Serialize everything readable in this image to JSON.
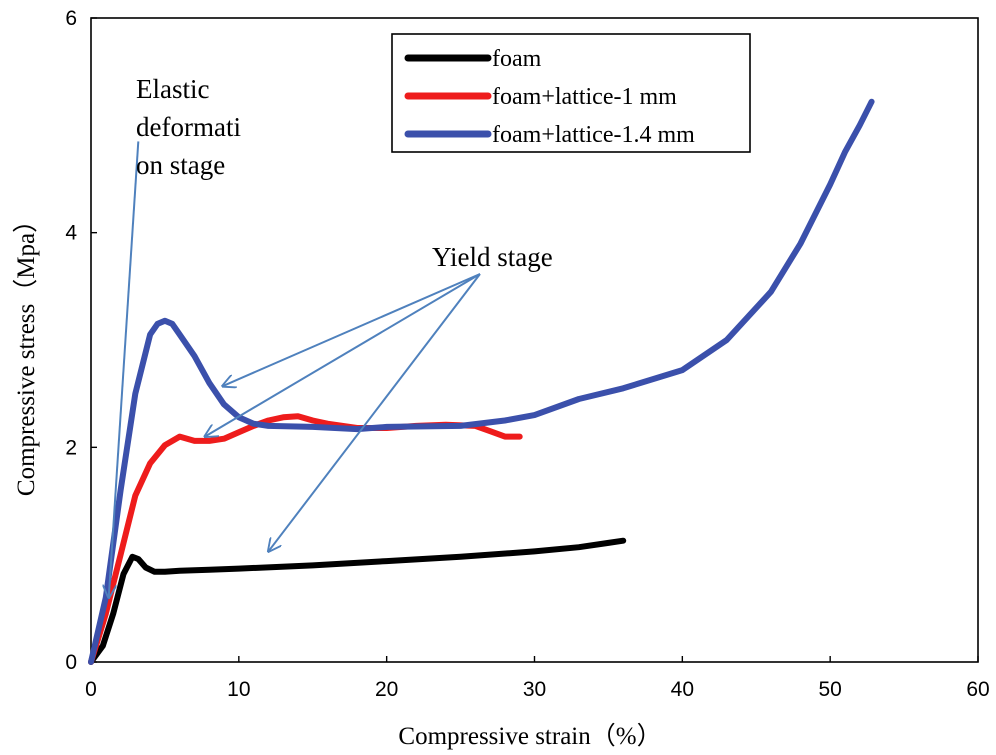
{
  "chart_data": {
    "type": "line",
    "xlabel": "Compressive strain（%）",
    "ylabel": "Compressive stress（Mpa）",
    "xlim": [
      0,
      60
    ],
    "ylim": [
      0,
      6
    ],
    "xticks": [
      0,
      10,
      20,
      30,
      40,
      50,
      60
    ],
    "yticks": [
      0,
      2,
      4,
      6
    ],
    "legend_position": "top-center",
    "series": [
      {
        "name": "foam",
        "color": "#000000",
        "x": [
          0,
          0.8,
          1.5,
          2.2,
          2.8,
          3.2,
          3.7,
          4.3,
          5,
          6,
          8,
          10,
          15,
          20,
          25,
          30,
          33,
          35,
          36
        ],
        "y": [
          0,
          0.15,
          0.45,
          0.82,
          0.98,
          0.96,
          0.88,
          0.84,
          0.84,
          0.85,
          0.86,
          0.87,
          0.9,
          0.94,
          0.98,
          1.03,
          1.07,
          1.11,
          1.13
        ]
      },
      {
        "name": "foam+lattice-1 mm",
        "color": "#ee1c1c",
        "x": [
          0,
          1,
          2,
          3,
          4,
          5,
          6,
          7,
          8,
          9,
          10,
          11,
          12,
          13,
          14,
          15,
          16,
          18,
          20,
          22,
          24,
          26,
          27,
          28,
          29
        ],
        "y": [
          0,
          0.45,
          1.0,
          1.55,
          1.85,
          2.02,
          2.1,
          2.06,
          2.06,
          2.08,
          2.14,
          2.2,
          2.25,
          2.28,
          2.29,
          2.25,
          2.22,
          2.18,
          2.18,
          2.2,
          2.21,
          2.2,
          2.15,
          2.1,
          2.1
        ]
      },
      {
        "name": "foam+lattice-1.4 mm",
        "color": "#3b50ab",
        "x": [
          0,
          1,
          2,
          3,
          4,
          4.5,
          5,
          5.5,
          6,
          7,
          8,
          9,
          10,
          11,
          12,
          15,
          18,
          20,
          25,
          28,
          30,
          33,
          36,
          40,
          43,
          46,
          48,
          50,
          51,
          52,
          52.8
        ],
        "y": [
          0,
          0.6,
          1.6,
          2.5,
          3.05,
          3.15,
          3.18,
          3.15,
          3.05,
          2.85,
          2.6,
          2.4,
          2.28,
          2.22,
          2.2,
          2.19,
          2.17,
          2.19,
          2.2,
          2.25,
          2.3,
          2.45,
          2.55,
          2.72,
          3.0,
          3.45,
          3.9,
          4.45,
          4.75,
          5.0,
          5.22
        ]
      }
    ],
    "annotations": {
      "elastic": {
        "lines": [
          "Elastic",
          "deformati",
          "on stage"
        ],
        "arrow_from": [
          3.2,
          4.85
        ],
        "arrow_to": [
          1.2,
          0.6
        ]
      },
      "yield": {
        "text": "Yield stage",
        "arrow_from": [
          52.5,
          3.6
        ],
        "arrows_to": [
          [
            8.9,
            2.57
          ],
          [
            7.7,
            2.1
          ],
          [
            12,
            1.03
          ]
        ],
        "arrow_origin_x": 0.513,
        "arrow_origin_y_frac": 0.0
      }
    },
    "annotation_color": "#4f81bd"
  }
}
